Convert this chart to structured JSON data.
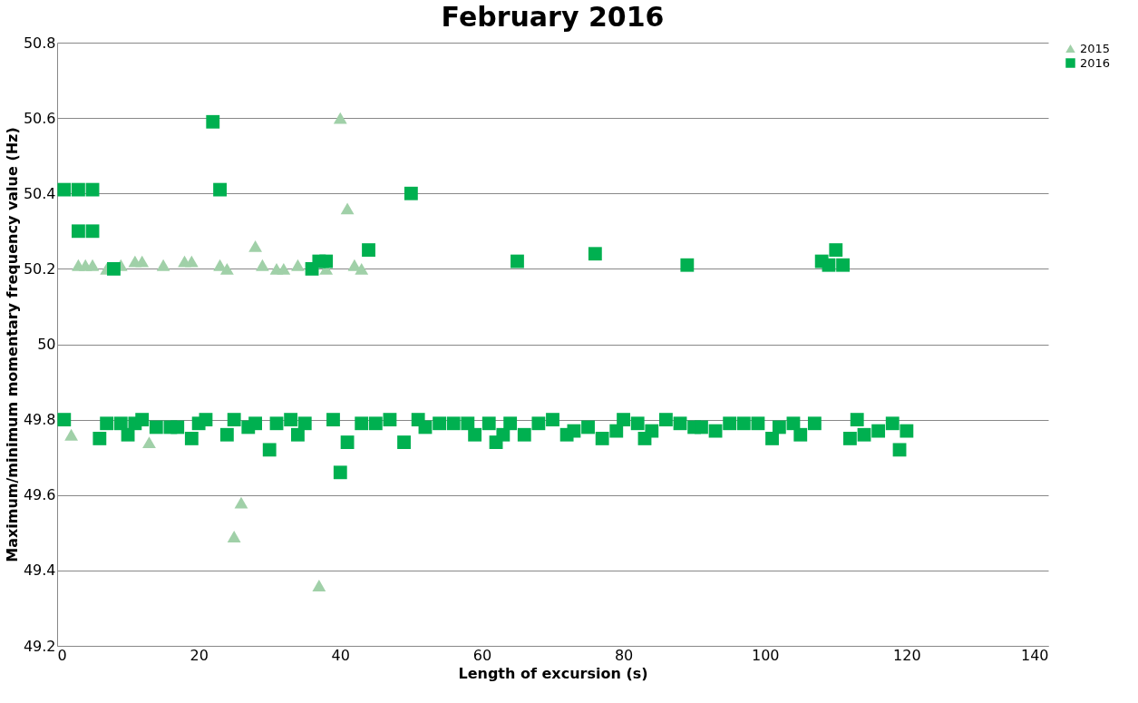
{
  "chart_data": {
    "type": "scatter",
    "title": "February 2016",
    "xlabel": "Length of excursion (s)",
    "ylabel": "Maximum/minimum momentary frequency value (Hz)",
    "xlim": [
      0,
      140
    ],
    "xticks": [
      0,
      20,
      40,
      60,
      80,
      100,
      120,
      140
    ],
    "ylim": [
      49.2,
      50.8
    ],
    "yticks": [
      49.2,
      49.4,
      49.6,
      49.8,
      50,
      50.2,
      50.4,
      50.6,
      50.8
    ],
    "grid": "y",
    "legend": "right",
    "series": [
      {
        "name": "2015",
        "color": "#a0d0a8",
        "marker": "triangle",
        "x": [
          2,
          3,
          4,
          5,
          7,
          9,
          11,
          12,
          13,
          15,
          18,
          19,
          23,
          24,
          25,
          26,
          28,
          29,
          31,
          32,
          34,
          35,
          37,
          38,
          40,
          41,
          42,
          43
        ],
        "values": [
          49.76,
          50.21,
          50.21,
          50.21,
          50.2,
          50.21,
          50.22,
          50.22,
          49.74,
          50.21,
          50.22,
          50.22,
          50.21,
          50.2,
          49.49,
          49.58,
          50.26,
          50.21,
          50.2,
          50.2,
          50.21,
          null,
          49.36,
          50.2,
          50.6,
          50.36,
          50.21,
          50.2
        ]
      },
      {
        "name": "2016",
        "color": "#00b050",
        "marker": "square",
        "x": [
          1,
          3,
          5,
          3,
          5,
          8,
          22,
          23,
          36,
          37,
          38,
          44,
          50,
          65,
          76,
          89,
          108,
          109,
          110,
          111,
          1,
          6,
          7,
          9,
          10,
          11,
          12,
          14,
          16,
          17,
          19,
          20,
          21,
          24,
          25,
          27,
          28,
          30,
          31,
          33,
          34,
          35,
          39,
          40,
          41,
          43,
          45,
          47,
          49,
          51,
          52,
          54,
          56,
          58,
          59,
          61,
          62,
          63,
          64,
          66,
          68,
          70,
          72,
          73,
          75,
          77,
          79,
          80,
          82,
          83,
          84,
          86,
          88,
          90,
          91,
          93,
          95,
          97,
          99,
          101,
          102,
          104,
          105,
          107,
          112,
          113,
          114,
          116,
          118,
          119,
          120
        ],
        "values": [
          50.41,
          50.41,
          50.41,
          50.3,
          50.3,
          50.2,
          50.59,
          50.41,
          50.2,
          50.22,
          50.22,
          50.25,
          50.4,
          50.22,
          50.24,
          50.21,
          50.22,
          50.21,
          50.25,
          50.21,
          49.8,
          49.75,
          49.79,
          49.79,
          49.76,
          49.79,
          49.8,
          49.78,
          49.78,
          49.78,
          49.75,
          49.79,
          49.8,
          49.76,
          49.8,
          49.78,
          49.79,
          49.72,
          49.79,
          49.8,
          49.76,
          49.79,
          49.8,
          49.66,
          49.74,
          49.79,
          49.79,
          49.8,
          49.74,
          49.8,
          49.78,
          49.79,
          49.79,
          49.79,
          49.76,
          49.79,
          49.74,
          49.76,
          49.79,
          49.76,
          49.79,
          49.8,
          49.76,
          49.77,
          49.78,
          49.75,
          49.77,
          49.8,
          49.79,
          49.75,
          49.77,
          49.8,
          49.79,
          49.78,
          49.78,
          49.77,
          49.79,
          49.79,
          49.79,
          49.75,
          49.78,
          49.79,
          49.76,
          49.79,
          49.75,
          49.8,
          49.76,
          49.77,
          49.79,
          49.72,
          49.77
        ]
      }
    ]
  }
}
